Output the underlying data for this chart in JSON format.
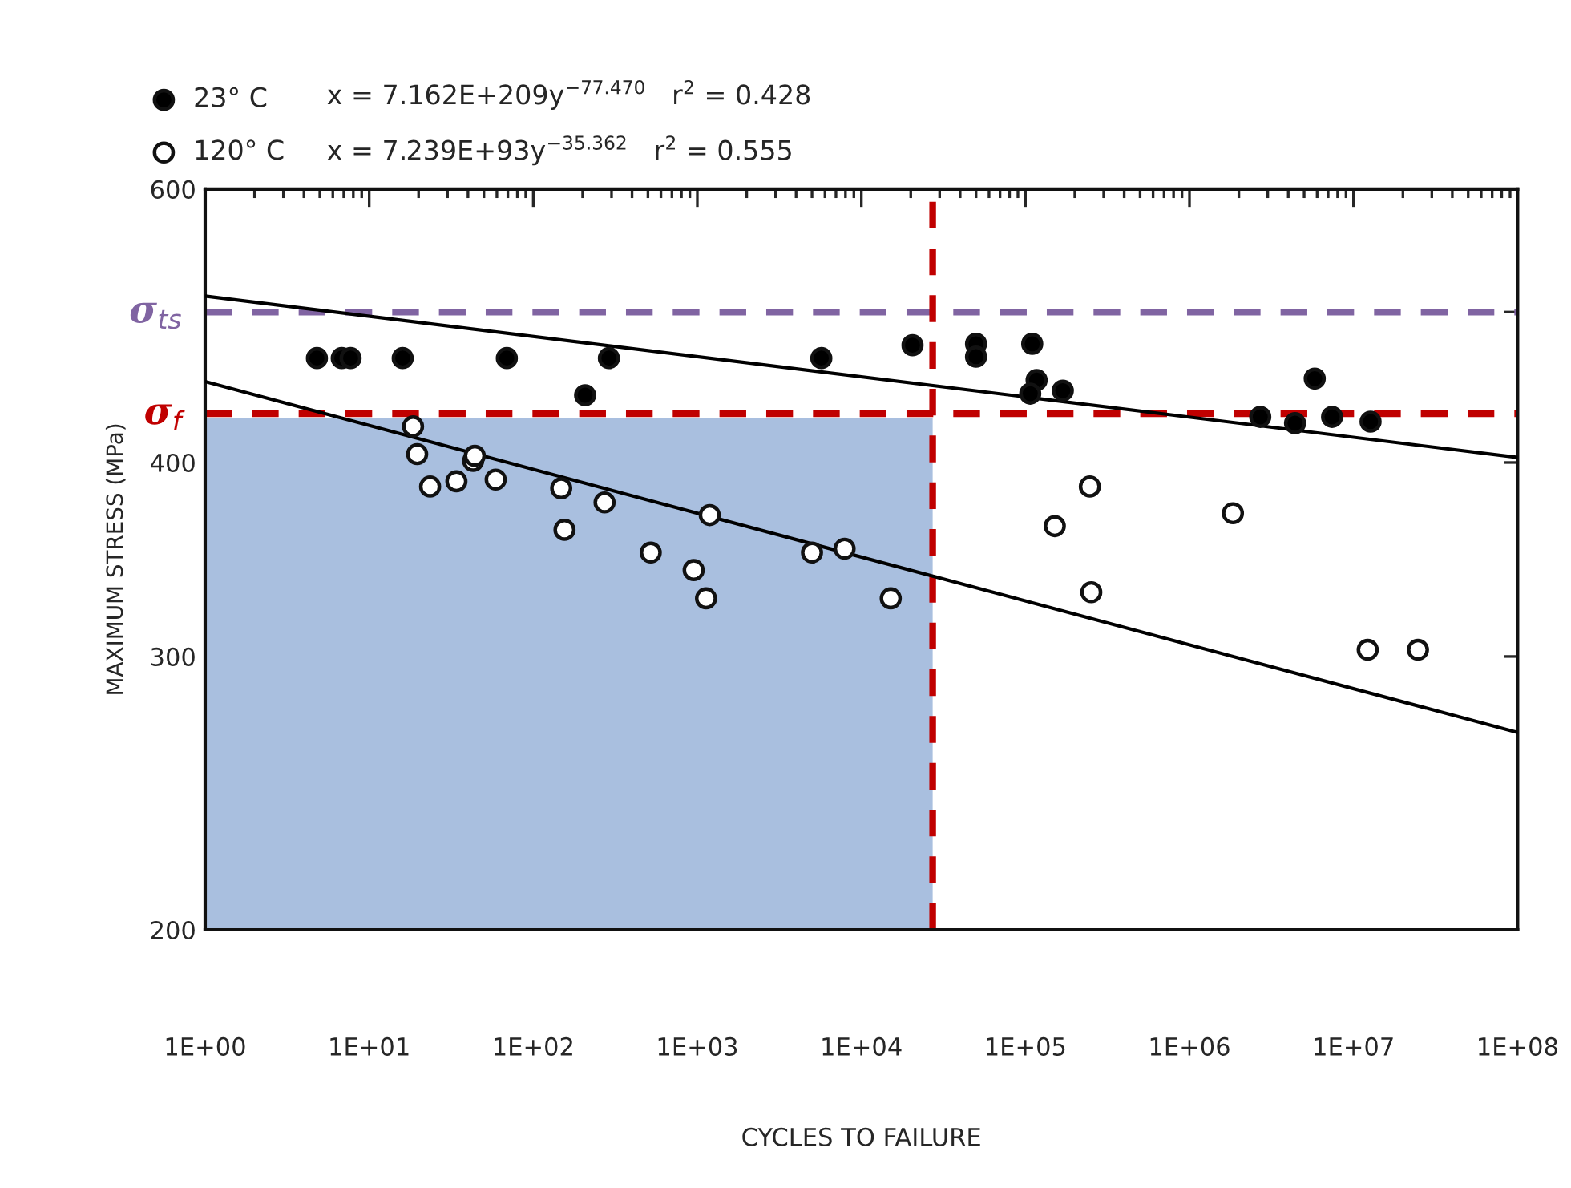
{
  "chart_data": {
    "type": "scatter",
    "xlabel": "CYCLES TO FAILURE",
    "ylabel": "MAXIMUM STRESS (MPa)",
    "log": "xy",
    "grid": false,
    "legend": "top",
    "xlim": [
      1,
      100000000
    ],
    "ylim": [
      200,
      600
    ],
    "xticks": [
      {
        "value": 1,
        "label": "1E+00"
      },
      {
        "value": 10,
        "label": "1E+01"
      },
      {
        "value": 100,
        "label": "1E+02"
      },
      {
        "value": 1000,
        "label": "1E+03"
      },
      {
        "value": 10000,
        "label": "1E+04"
      },
      {
        "value": 100000,
        "label": "1E+05"
      },
      {
        "value": 1000000,
        "label": "1E+06"
      },
      {
        "value": 10000000,
        "label": "1E+07"
      },
      {
        "value": 100000000,
        "label": "1E+08"
      }
    ],
    "yticks": [
      200,
      300,
      400,
      {
        "value": 500,
        "label": null
      },
      600
    ],
    "series": [
      {
        "type": "area",
        "color": "#a9bfdf",
        "x": [
          1,
          27200
        ],
        "values": [
          427,
          427
        ]
      },
      {
        "marker": "circle",
        "name": "23° C",
        "color": "#000000",
        "x": [
          4.8,
          6.8,
          7.7,
          16,
          69,
          289,
          207,
          5700,
          20500,
          50000,
          50000,
          110000,
          117000,
          107000,
          169000,
          2700000,
          4400000,
          5800000,
          7400000,
          12700000
        ],
        "values": [
          467,
          467,
          467,
          467,
          467,
          467,
          442,
          467,
          476,
          477,
          468,
          477,
          452,
          443,
          445,
          428,
          424,
          453,
          428,
          425
        ]
      },
      {
        "marker": "circle",
        "name": "120° C",
        "color": "#ffffff",
        "x": [
          18.5,
          19.6,
          23.5,
          34,
          43,
          44,
          59,
          148,
          155,
          272,
          520,
          950,
          1190,
          1130,
          5000,
          7900,
          15100,
          151000,
          247000,
          1840000,
          252000,
          12200000,
          24700000
        ],
        "values": [
          422,
          405,
          386,
          389,
          401,
          404,
          390,
          385,
          362,
          377,
          350,
          341,
          370,
          327,
          350,
          352,
          327,
          364,
          386,
          371,
          330,
          303,
          303
        ]
      },
      {
        "type": "line",
        "color": "#000000",
        "line_style": "solid",
        "marker": "none",
        "x": [
          1,
          100000000
        ],
        "values": [
          512,
          403
        ]
      },
      {
        "type": "line",
        "color": "#000000",
        "line_style": "solid",
        "marker": "none",
        "x": [
          1,
          100000000
        ],
        "values": [
          451,
          268
        ]
      }
    ],
    "annotations": [
      "x = 7.162E+209y$^{−77.470}$   r$^{2}$ = 0.428",
      "x = 7.239E+93y$^{−35.362}$   r$^{2}$ = 0.555"
    ],
    "ref_lines": [
      {
        "axis": "y",
        "value": 500,
        "label": "σ$_{ts}$",
        "color": "#8064a2",
        "line_style": "dashed"
      },
      {
        "axis": "y",
        "value": 430,
        "label": "σ$_{f}$",
        "color": "#c00000",
        "line_style": "dashed"
      },
      {
        "axis": "x",
        "value": 27200,
        "color": "#c00000",
        "line_style": "dashed"
      }
    ]
  }
}
